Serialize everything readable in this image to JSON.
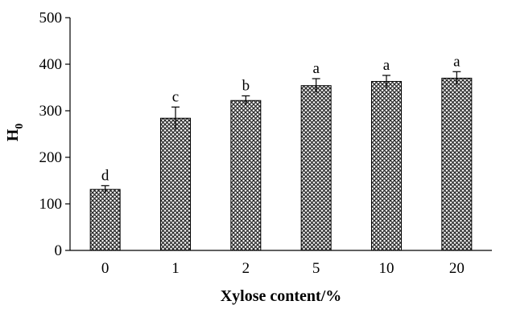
{
  "chart_data": {
    "type": "bar",
    "title": "",
    "xlabel": "Xylose content/%",
    "ylabel": "H",
    "ylabel_subscript": "0",
    "categories": [
      "0",
      "1",
      "2",
      "5",
      "10",
      "20"
    ],
    "values": [
      131,
      284,
      322,
      354,
      363,
      370
    ],
    "errors": [
      8,
      24,
      10,
      15,
      13,
      14
    ],
    "significance_labels": [
      "d",
      "c",
      "b",
      "a",
      "a",
      "a"
    ],
    "ylim": [
      0,
      500
    ],
    "yticks": [
      0,
      100,
      200,
      300,
      400,
      500
    ],
    "grid": false,
    "legend": "none",
    "bar_fill": "crosshatch",
    "colors": {
      "bar_background": "#ffffff",
      "bar_hatch": "#2a2a2a",
      "axis": "#000000"
    }
  }
}
